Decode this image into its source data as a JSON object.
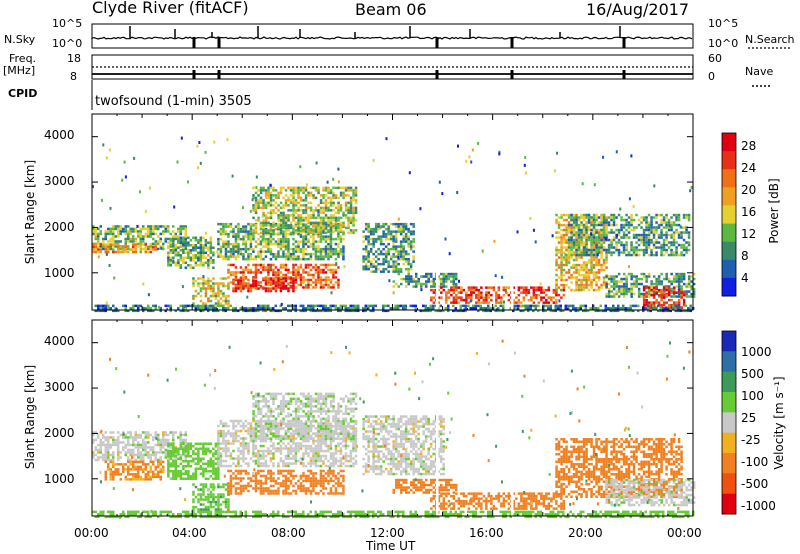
{
  "header": {
    "station": "Clyde River (fitACF)",
    "beam": "Beam 06",
    "date": "16/Aug/2017"
  },
  "top_panels": {
    "nsky_label": "N.Sky",
    "nsky_ticks": [
      "10^5",
      "10^0"
    ],
    "nsearch_label": "N.Search",
    "nsearch_ticks": [
      "10^5",
      "10^0"
    ],
    "freq_label": "Freq.",
    "freq_unit": "[MHz]",
    "freq_ticks": [
      "18",
      "8"
    ],
    "nave_label": "Nave",
    "nave_ticks": [
      "60",
      "0"
    ],
    "cpid_label": "CPID",
    "cpid_value": "twofsound (1-min) 3505"
  },
  "chart_data": [
    {
      "type": "heatmap",
      "panel": "power",
      "ylabel": "Slant Range [km]",
      "xlabel": "Time UT",
      "x_ticks": [
        "00:00",
        "04:00",
        "08:00",
        "12:00",
        "16:00",
        "20:00",
        "00:00"
      ],
      "x_range_hours": [
        0,
        24
      ],
      "y_range": [
        180,
        4500
      ],
      "y_ticks": [
        1000,
        2000,
        3000,
        4000
      ],
      "colorbar": {
        "label": "Power [dB]",
        "ticks": [
          "4",
          "8",
          "12",
          "16",
          "20",
          "24",
          "28"
        ],
        "colors": [
          "#1020e0",
          "#1f5fb0",
          "#3a8a6a",
          "#5cb840",
          "#e6d030",
          "#f0a020",
          "#f07018",
          "#e83018",
          "#e00010"
        ]
      },
      "regions": [
        {
          "t": [
            0.0,
            3.7
          ],
          "r": [
            1500,
            2050
          ],
          "v": 12
        },
        {
          "t": [
            0.0,
            2.5
          ],
          "r": [
            1450,
            1650
          ],
          "v": 20
        },
        {
          "t": [
            3.0,
            4.8
          ],
          "r": [
            1100,
            1800
          ],
          "v": 12
        },
        {
          "t": [
            4.0,
            5.4
          ],
          "r": [
            250,
            900
          ],
          "v": 16
        },
        {
          "t": [
            5.0,
            10.0
          ],
          "r": [
            1300,
            2100
          ],
          "v": 12
        },
        {
          "t": [
            5.4,
            9.8
          ],
          "r": [
            700,
            1200
          ],
          "v": 24
        },
        {
          "t": [
            5.6,
            8.0
          ],
          "r": [
            600,
            900
          ],
          "v": 28
        },
        {
          "t": [
            6.4,
            10.5
          ],
          "r": [
            1900,
            2900
          ],
          "v": 14
        },
        {
          "t": [
            10.8,
            12.8
          ],
          "r": [
            1000,
            2100
          ],
          "v": 10
        },
        {
          "t": [
            12.0,
            14.5
          ],
          "r": [
            700,
            1000
          ],
          "v": 10
        },
        {
          "t": [
            13.5,
            18.8
          ],
          "r": [
            350,
            700
          ],
          "v": 26
        },
        {
          "t": [
            18.5,
            20.5
          ],
          "r": [
            600,
            2300
          ],
          "v": 18
        },
        {
          "t": [
            19.0,
            23.8
          ],
          "r": [
            1400,
            2300
          ],
          "v": 10
        },
        {
          "t": [
            20.5,
            24.0
          ],
          "r": [
            500,
            1000
          ],
          "v": 10
        },
        {
          "t": [
            22.0,
            23.6
          ],
          "r": [
            250,
            700
          ],
          "v": 28
        },
        {
          "t": [
            0.0,
            24.0
          ],
          "r": [
            180,
            300
          ],
          "v": 8
        }
      ]
    },
    {
      "type": "heatmap",
      "panel": "velocity",
      "ylabel": "Slant Range [km]",
      "xlabel": "Time UT",
      "x_ticks": [
        "00:00",
        "04:00",
        "08:00",
        "12:00",
        "16:00",
        "20:00",
        "00:00"
      ],
      "x_range_hours": [
        0,
        24
      ],
      "y_range": [
        180,
        4500
      ],
      "y_ticks": [
        1000,
        2000,
        3000,
        4000
      ],
      "colorbar": {
        "label": "Velocity [m s⁻¹]",
        "ticks": [
          "1000",
          "500",
          "100",
          "25",
          "-25",
          "-100",
          "-500",
          "-1000"
        ],
        "colors": [
          "#1a2ab8",
          "#2f6fa8",
          "#3d9a5a",
          "#66cc33",
          "#c8c8c8",
          "#f0b020",
          "#f08020",
          "#f05010",
          "#e00010"
        ]
      },
      "regions": [
        {
          "t": [
            0.0,
            3.7
          ],
          "r": [
            1400,
            2050
          ],
          "v": 0
        },
        {
          "t": [
            0.5,
            2.8
          ],
          "r": [
            1000,
            1400
          ],
          "v": -150
        },
        {
          "t": [
            3.0,
            5.0
          ],
          "r": [
            1000,
            1800
          ],
          "v": 60
        },
        {
          "t": [
            4.0,
            5.4
          ],
          "r": [
            250,
            900
          ],
          "v": 80
        },
        {
          "t": [
            5.0,
            10.5
          ],
          "r": [
            1300,
            2300
          ],
          "v": 0
        },
        {
          "t": [
            5.4,
            10.0
          ],
          "r": [
            700,
            1200
          ],
          "v": -300
        },
        {
          "t": [
            6.4,
            10.5
          ],
          "r": [
            1900,
            2900
          ],
          "v": 10
        },
        {
          "t": [
            10.8,
            14.0
          ],
          "r": [
            1100,
            2400
          ],
          "v": 0
        },
        {
          "t": [
            12.0,
            14.5
          ],
          "r": [
            700,
            1000
          ],
          "v": -300
        },
        {
          "t": [
            13.5,
            18.8
          ],
          "r": [
            350,
            700
          ],
          "v": -250
        },
        {
          "t": [
            18.5,
            23.5
          ],
          "r": [
            600,
            1900
          ],
          "v": -300
        },
        {
          "t": [
            20.5,
            24.0
          ],
          "r": [
            400,
            1000
          ],
          "v": 5
        },
        {
          "t": [
            0.0,
            24.0
          ],
          "r": [
            180,
            300
          ],
          "v": 60
        }
      ]
    }
  ]
}
